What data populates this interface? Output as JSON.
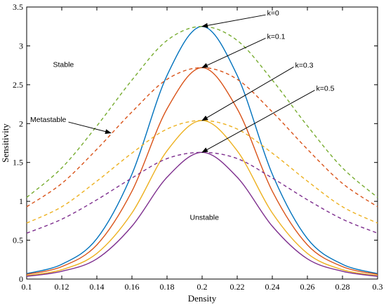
{
  "chart_data": {
    "type": "line",
    "title": "",
    "xlabel": "Density",
    "ylabel": "Sensitivity",
    "xlim": [
      0.1,
      0.3
    ],
    "ylim": [
      0,
      3.5
    ],
    "x_ticks": [
      "0.1",
      "0.12",
      "0.14",
      "0.16",
      "0.18",
      "0.2",
      "0.22",
      "0.24",
      "0.26",
      "0.28",
      "0.3"
    ],
    "y_ticks": [
      "0",
      "0.5",
      "1",
      "1.5",
      "2",
      "2.5",
      "3",
      "3.5"
    ],
    "grid": false,
    "x": [
      0.1,
      0.12,
      0.14,
      0.16,
      0.18,
      0.2,
      0.22,
      0.24,
      0.26,
      0.28,
      0.3
    ],
    "series": [
      {
        "style": "solid",
        "color": "#0072BD",
        "values": [
          0.07,
          0.19,
          0.52,
          1.35,
          2.62,
          3.25,
          2.62,
          1.35,
          0.52,
          0.19,
          0.07
        ]
      },
      {
        "style": "solid",
        "color": "#D95319",
        "values": [
          0.06,
          0.16,
          0.44,
          1.13,
          2.19,
          2.72,
          2.19,
          1.13,
          0.44,
          0.16,
          0.06
        ]
      },
      {
        "style": "solid",
        "color": "#EDB120",
        "values": [
          0.045,
          0.12,
          0.33,
          0.85,
          1.65,
          2.04,
          1.65,
          0.85,
          0.33,
          0.12,
          0.045
        ]
      },
      {
        "style": "solid",
        "color": "#7E2F8E",
        "values": [
          0.035,
          0.1,
          0.26,
          0.68,
          1.31,
          1.63,
          1.31,
          0.68,
          0.26,
          0.1,
          0.035
        ]
      },
      {
        "style": "dashed",
        "color": "#77AC30",
        "values": [
          1.05,
          1.43,
          1.97,
          2.56,
          3.07,
          3.25,
          3.07,
          2.56,
          1.97,
          1.43,
          1.05
        ]
      },
      {
        "style": "dashed",
        "color": "#D95319",
        "values": [
          0.93,
          1.23,
          1.67,
          2.15,
          2.57,
          2.72,
          2.57,
          2.15,
          1.67,
          1.23,
          0.93
        ]
      },
      {
        "style": "dashed",
        "color": "#EDB120",
        "values": [
          0.72,
          0.93,
          1.26,
          1.62,
          1.93,
          2.04,
          1.93,
          1.62,
          1.26,
          0.93,
          0.72
        ]
      },
      {
        "style": "dashed",
        "color": "#7E2F8E",
        "values": [
          0.59,
          0.77,
          1.02,
          1.3,
          1.55,
          1.63,
          1.55,
          1.3,
          1.02,
          0.77,
          0.59
        ]
      }
    ],
    "annotations": [
      {
        "text": "k=0",
        "x": 0.237,
        "y": 3.39,
        "arrow_to": [
          0.2,
          3.25
        ]
      },
      {
        "text": "k=0.1",
        "x": 0.237,
        "y": 3.09,
        "arrow_to": [
          0.2,
          2.72
        ]
      },
      {
        "text": "k=0.3",
        "x": 0.253,
        "y": 2.72,
        "arrow_to": [
          0.2,
          2.04
        ]
      },
      {
        "text": "k=0.5",
        "x": 0.265,
        "y": 2.42,
        "arrow_to": [
          0.2,
          1.63
        ]
      },
      {
        "text": "Stable",
        "x": 0.115,
        "y": 2.73
      },
      {
        "text": "Metastable",
        "x": 0.102,
        "y": 2.02,
        "arrow_to": [
          0.148,
          1.88
        ]
      },
      {
        "text": "Unstable",
        "x": 0.193,
        "y": 0.76
      }
    ]
  }
}
